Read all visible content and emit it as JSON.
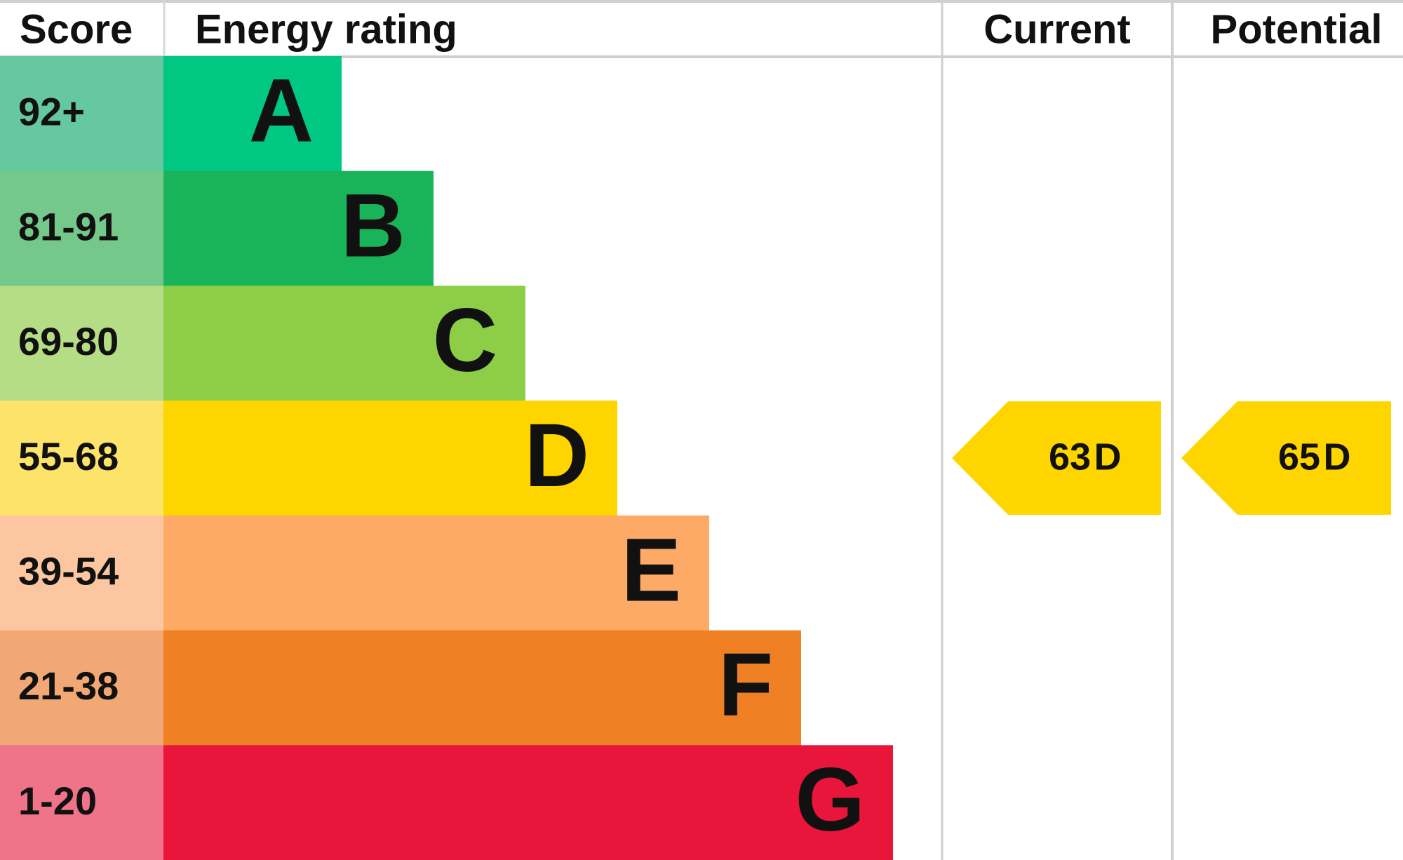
{
  "header": {
    "score": "Score",
    "rating": "Energy rating",
    "current": "Current",
    "potential": "Potential"
  },
  "rows": [
    {
      "score": "92+",
      "rating": "A",
      "score_color": "#66c8a0",
      "bar_color": "#00c781"
    },
    {
      "score": "81-91",
      "rating": "B",
      "score_color": "#74c98a",
      "bar_color": "#19b459"
    },
    {
      "score": "69-80",
      "rating": "C",
      "score_color": "#b5dd85",
      "bar_color": "#8dce46"
    },
    {
      "score": "55-68",
      "rating": "D",
      "score_color": "#fde369",
      "bar_color": "#ffd500"
    },
    {
      "score": "39-54",
      "rating": "E",
      "score_color": "#fcc7a0",
      "bar_color": "#fcaa65"
    },
    {
      "score": "21-38",
      "rating": "F",
      "score_color": "#f2a874",
      "bar_color": "#ef8023"
    },
    {
      "score": "1-20",
      "rating": "G",
      "score_color": "#ef7389",
      "bar_color": "#e9153b"
    }
  ],
  "current": {
    "value": 63,
    "rating": "D"
  },
  "potential": {
    "value": 65,
    "rating": "D"
  }
}
